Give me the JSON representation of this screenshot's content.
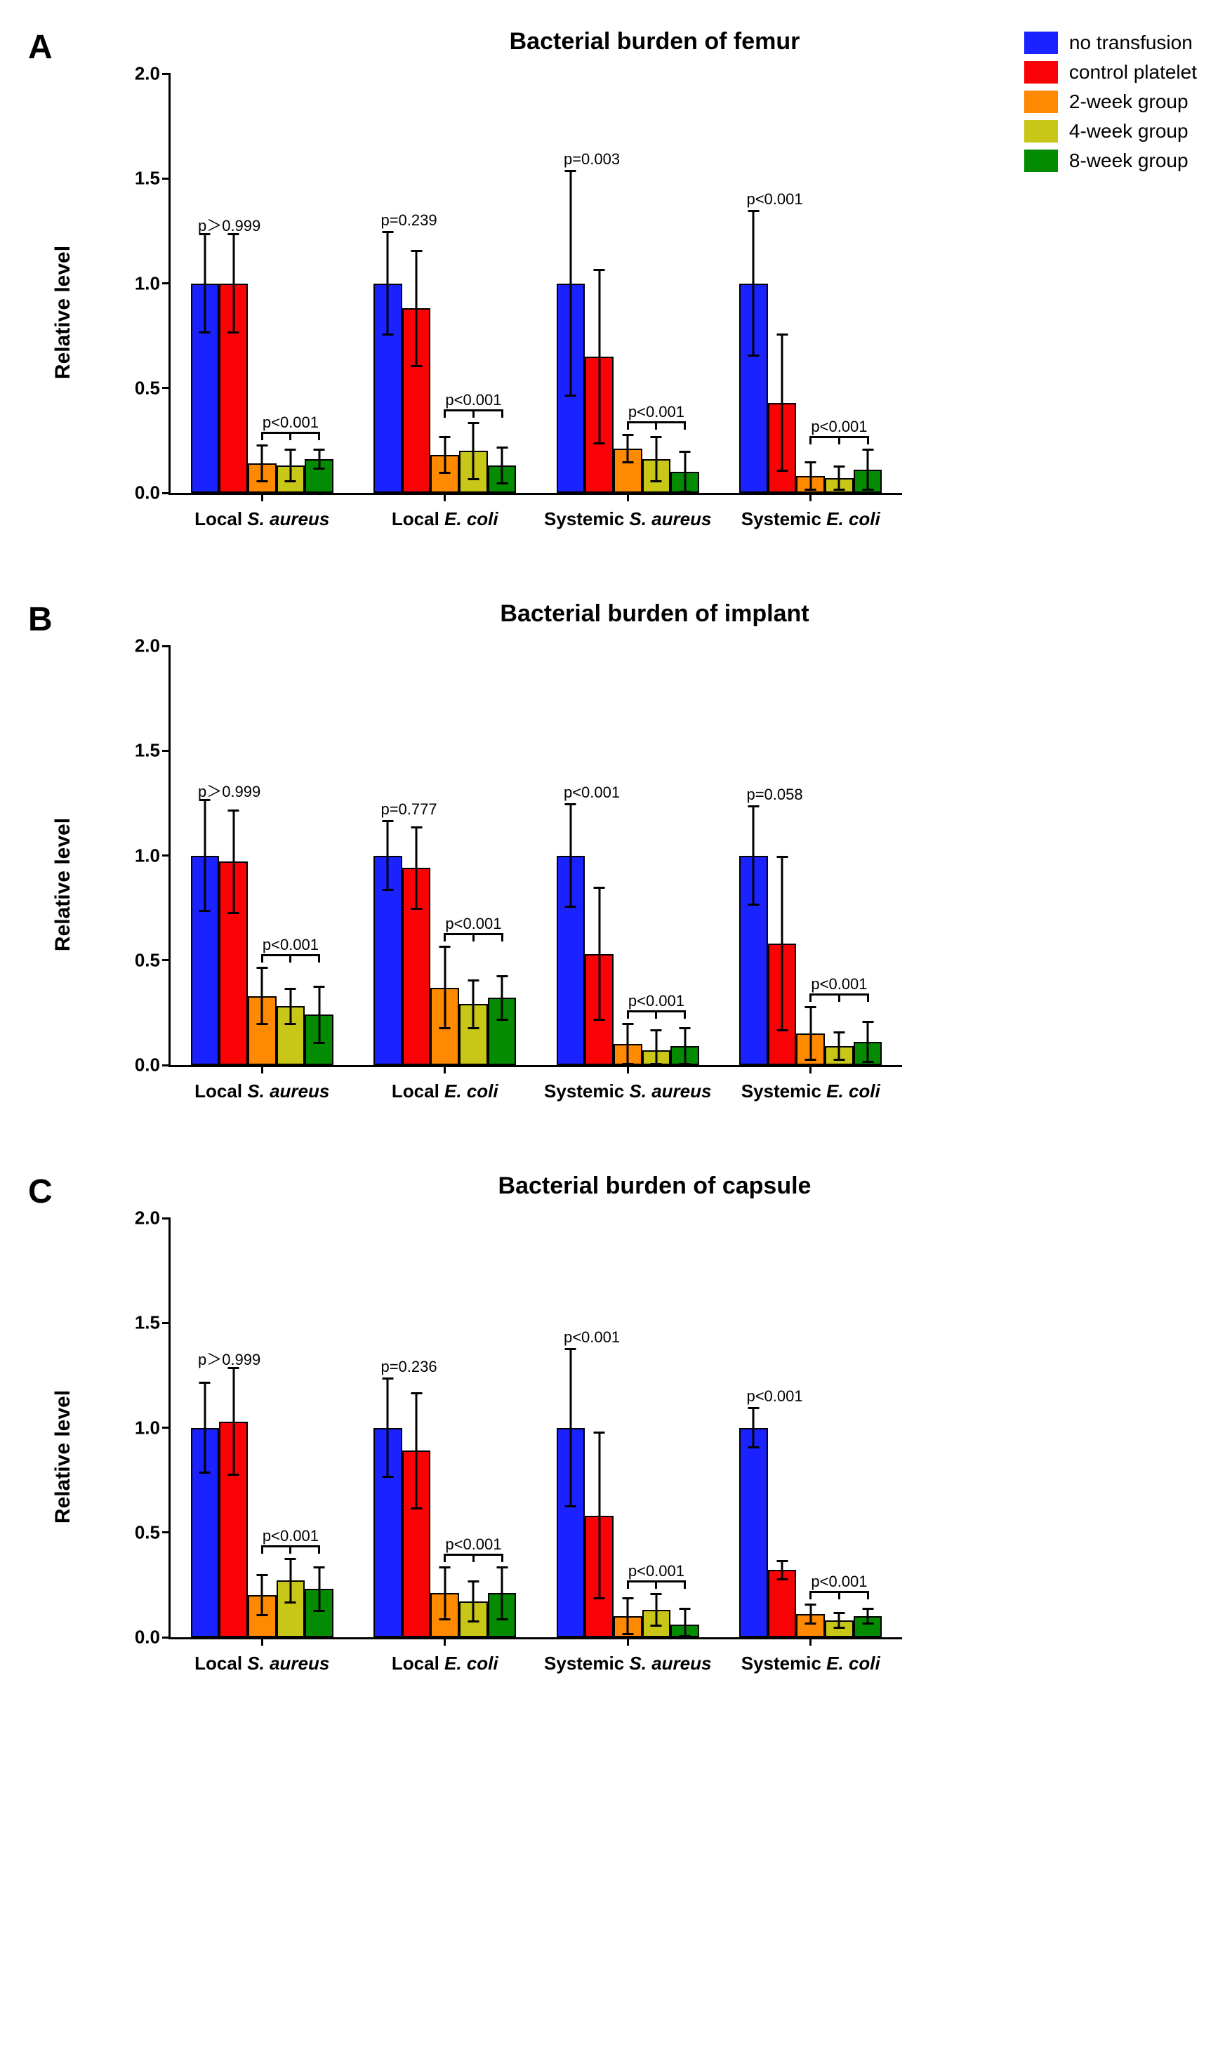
{
  "figure": {
    "legend": [
      {
        "label": "no transfusion",
        "color": "#1a22ff"
      },
      {
        "label": "control platelet",
        "color": "#fa0306"
      },
      {
        "label": "2-week group",
        "color": "#ff8900"
      },
      {
        "label": "4-week group",
        "color": "#c8c717"
      },
      {
        "label": "8-week group",
        "color": "#038b02"
      }
    ],
    "yAxis": {
      "label": "Relative level",
      "min": 0,
      "max": 2.0,
      "ticks": [
        0.0,
        0.5,
        1.0,
        1.5,
        2.0
      ],
      "tickLabels": [
        "0.0",
        "0.5",
        "1.0",
        "1.5",
        "2.0"
      ],
      "label_fontsize": 30,
      "tick_fontsize": 26
    },
    "xAxis": {
      "categories": [
        {
          "prefix": "Local ",
          "italic": "S. aureus"
        },
        {
          "prefix": "Local ",
          "italic": "E. coli"
        },
        {
          "prefix": "Systemic ",
          "italic": "S. aureus"
        },
        {
          "prefix": "Systemic ",
          "italic": "E. coli"
        }
      ],
      "label_fontsize": 26
    },
    "panels": [
      {
        "letter": "A",
        "title": "Bacterial burden of femur",
        "showLegend": true,
        "groups": [
          {
            "bars": [
              {
                "v": 1.0,
                "e": 0.24
              },
              {
                "v": 1.0,
                "e": 0.24
              },
              {
                "v": 0.14,
                "e": 0.09
              },
              {
                "v": 0.13,
                "e": 0.08
              },
              {
                "v": 0.16,
                "e": 0.05
              }
            ],
            "p1": "p＞0.999",
            "p2": "p<0.001"
          },
          {
            "bars": [
              {
                "v": 1.0,
                "e": 0.25
              },
              {
                "v": 0.88,
                "e": 0.28
              },
              {
                "v": 0.18,
                "e": 0.09
              },
              {
                "v": 0.2,
                "e": 0.14
              },
              {
                "v": 0.13,
                "e": 0.09
              }
            ],
            "p1": "p=0.239",
            "p2": "p<0.001"
          },
          {
            "bars": [
              {
                "v": 1.0,
                "e": 0.54
              },
              {
                "v": 0.65,
                "e": 0.42
              },
              {
                "v": 0.21,
                "e": 0.07
              },
              {
                "v": 0.16,
                "e": 0.11
              },
              {
                "v": 0.1,
                "e": 0.1
              }
            ],
            "p1": "p=0.003",
            "p2": "p<0.001"
          },
          {
            "bars": [
              {
                "v": 1.0,
                "e": 0.35
              },
              {
                "v": 0.43,
                "e": 0.33
              },
              {
                "v": 0.08,
                "e": 0.07
              },
              {
                "v": 0.07,
                "e": 0.06
              },
              {
                "v": 0.11,
                "e": 0.1
              }
            ],
            "p1": "p<0.001",
            "p2": "p<0.001"
          }
        ]
      },
      {
        "letter": "B",
        "title": "Bacterial burden of implant",
        "showLegend": false,
        "groups": [
          {
            "bars": [
              {
                "v": 1.0,
                "e": 0.27
              },
              {
                "v": 0.97,
                "e": 0.25
              },
              {
                "v": 0.33,
                "e": 0.14
              },
              {
                "v": 0.28,
                "e": 0.09
              },
              {
                "v": 0.24,
                "e": 0.14
              }
            ],
            "p1": "p＞0.999",
            "p2": "p<0.001"
          },
          {
            "bars": [
              {
                "v": 1.0,
                "e": 0.17
              },
              {
                "v": 0.94,
                "e": 0.2
              },
              {
                "v": 0.37,
                "e": 0.2
              },
              {
                "v": 0.29,
                "e": 0.12
              },
              {
                "v": 0.32,
                "e": 0.11
              }
            ],
            "p1": "p=0.777",
            "p2": "p<0.001"
          },
          {
            "bars": [
              {
                "v": 1.0,
                "e": 0.25
              },
              {
                "v": 0.53,
                "e": 0.32
              },
              {
                "v": 0.1,
                "e": 0.1
              },
              {
                "v": 0.07,
                "e": 0.1
              },
              {
                "v": 0.09,
                "e": 0.09
              }
            ],
            "p1": "p<0.001",
            "p2": "p<0.001"
          },
          {
            "bars": [
              {
                "v": 1.0,
                "e": 0.24
              },
              {
                "v": 0.58,
                "e": 0.42
              },
              {
                "v": 0.15,
                "e": 0.13
              },
              {
                "v": 0.09,
                "e": 0.07
              },
              {
                "v": 0.11,
                "e": 0.1
              }
            ],
            "p1": "p=0.058",
            "p2": "p<0.001"
          }
        ]
      },
      {
        "letter": "C",
        "title": "Bacterial burden of capsule",
        "showLegend": false,
        "groups": [
          {
            "bars": [
              {
                "v": 1.0,
                "e": 0.22
              },
              {
                "v": 1.03,
                "e": 0.26
              },
              {
                "v": 0.2,
                "e": 0.1
              },
              {
                "v": 0.27,
                "e": 0.11
              },
              {
                "v": 0.23,
                "e": 0.11
              }
            ],
            "p1": "p＞0.999",
            "p2": "p<0.001"
          },
          {
            "bars": [
              {
                "v": 1.0,
                "e": 0.24
              },
              {
                "v": 0.89,
                "e": 0.28
              },
              {
                "v": 0.21,
                "e": 0.13
              },
              {
                "v": 0.17,
                "e": 0.1
              },
              {
                "v": 0.21,
                "e": 0.13
              }
            ],
            "p1": "p=0.236",
            "p2": "p<0.001"
          },
          {
            "bars": [
              {
                "v": 1.0,
                "e": 0.38
              },
              {
                "v": 0.58,
                "e": 0.4
              },
              {
                "v": 0.1,
                "e": 0.09
              },
              {
                "v": 0.13,
                "e": 0.08
              },
              {
                "v": 0.06,
                "e": 0.08
              }
            ],
            "p1": "p<0.001",
            "p2": "p<0.001"
          },
          {
            "bars": [
              {
                "v": 1.0,
                "e": 0.1
              },
              {
                "v": 0.32,
                "e": 0.05
              },
              {
                "v": 0.11,
                "e": 0.05
              },
              {
                "v": 0.08,
                "e": 0.04
              },
              {
                "v": 0.1,
                "e": 0.04
              }
            ],
            "p1": "p<0.001",
            "p2": "p<0.001"
          }
        ]
      }
    ],
    "style": {
      "barBorderColor": "#000000",
      "barBorderWidth": 2,
      "errorBarColor": "#000000",
      "errorCapWidth": 16,
      "background": "#ffffff",
      "title_fontsize": 34,
      "letter_fontsize": 48,
      "p_fontsize": 22,
      "legend_fontsize": 28,
      "barWidthFrac": 0.155,
      "groupGapFrac": 0.22
    }
  }
}
